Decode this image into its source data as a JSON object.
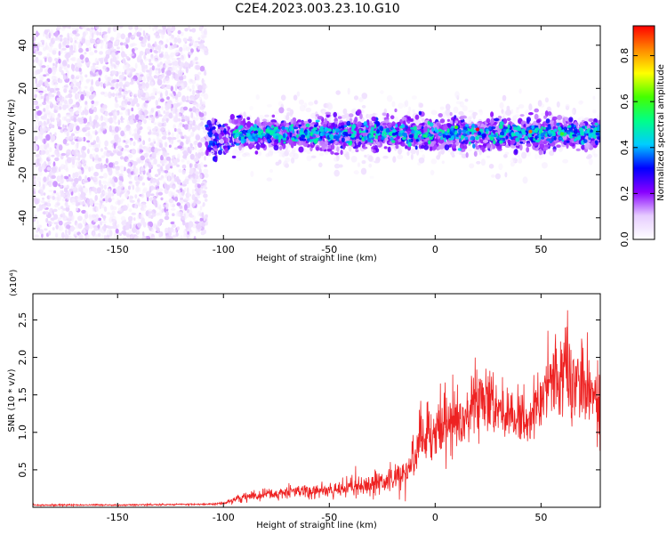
{
  "figure_title": "C2E4.2023.003.23.10.G10",
  "chart_data": [
    {
      "type": "heatmap",
      "xlabel": "Height of straight line (km)",
      "ylabel": "Frequency (Hz)",
      "xlim": [
        -190,
        78
      ],
      "ylim": [
        -50,
        49
      ],
      "x_ticks": [
        -150,
        -100,
        -50,
        0,
        50
      ],
      "y_ticks": [
        -40,
        -20,
        0,
        20,
        40
      ],
      "colorbar": {
        "label": "Normalized spectral amplitude",
        "range": [
          0,
          0.93
        ],
        "ticks": [
          0.0,
          0.2,
          0.4,
          0.6,
          0.8
        ],
        "colormap": [
          "#ffffff",
          "#e6ccff",
          "#8800ff",
          "#0000ff",
          "#00ccff",
          "#00ff88",
          "#44ff00",
          "#ffff00",
          "#ff8800",
          "#ff0000"
        ]
      },
      "regions": [
        {
          "x_range": [
            -190,
            -108
          ],
          "freq_range": [
            -50,
            49
          ],
          "description": "broadband noise",
          "amplitude_range": [
            0.0,
            0.15
          ]
        },
        {
          "x_range": [
            -108,
            -95
          ],
          "freq_range": [
            -12,
            6
          ],
          "description": "signal onset",
          "amplitude_range": [
            0.1,
            0.45
          ]
        },
        {
          "x_range": [
            -95,
            78
          ],
          "freq_center": -1,
          "freq_width": 12,
          "description": "signal band",
          "amplitude_range": [
            0.1,
            0.93
          ]
        }
      ],
      "peak": {
        "x": 20,
        "freq": 1,
        "amplitude": 0.93
      }
    },
    {
      "type": "line",
      "xlabel": "Height of straight line (km)",
      "ylabel": "SNR (10 * v/v)",
      "y_multiplier": "(x10⁴)",
      "xlim": [
        -190,
        78
      ],
      "ylim": [
        0,
        2.85
      ],
      "x_ticks": [
        -150,
        -100,
        -50,
        0,
        50
      ],
      "y_ticks": [
        0.5,
        1.0,
        1.5,
        2.0,
        2.5
      ],
      "y_tick_labels": [
        "0.5",
        "1.0",
        "1.5",
        "2.0",
        "2.5"
      ],
      "color": "#ee2222",
      "series": [
        {
          "x": [
            -190,
            -150,
            -110,
            -100,
            -95,
            -90,
            -80,
            -70,
            -60,
            -50,
            -40,
            -30,
            -20,
            -15,
            -10,
            -5,
            0,
            5,
            10,
            15,
            20,
            25,
            30,
            35,
            40,
            45,
            50,
            55,
            60,
            65,
            70,
            75,
            78
          ],
          "mean": [
            0.03,
            0.03,
            0.04,
            0.05,
            0.1,
            0.14,
            0.17,
            0.19,
            0.21,
            0.23,
            0.26,
            0.3,
            0.35,
            0.4,
            0.7,
            0.9,
            1.0,
            1.1,
            1.15,
            1.25,
            1.35,
            1.4,
            1.3,
            1.2,
            1.15,
            1.2,
            1.5,
            1.7,
            1.9,
            1.75,
            1.6,
            1.55,
            1.5
          ],
          "spread": [
            0.01,
            0.01,
            0.01,
            0.02,
            0.04,
            0.06,
            0.07,
            0.08,
            0.09,
            0.1,
            0.11,
            0.13,
            0.15,
            0.22,
            0.3,
            0.35,
            0.4,
            0.42,
            0.42,
            0.4,
            0.4,
            0.4,
            0.35,
            0.32,
            0.32,
            0.35,
            0.42,
            0.5,
            0.55,
            0.5,
            0.45,
            0.45,
            0.45
          ]
        }
      ]
    }
  ]
}
